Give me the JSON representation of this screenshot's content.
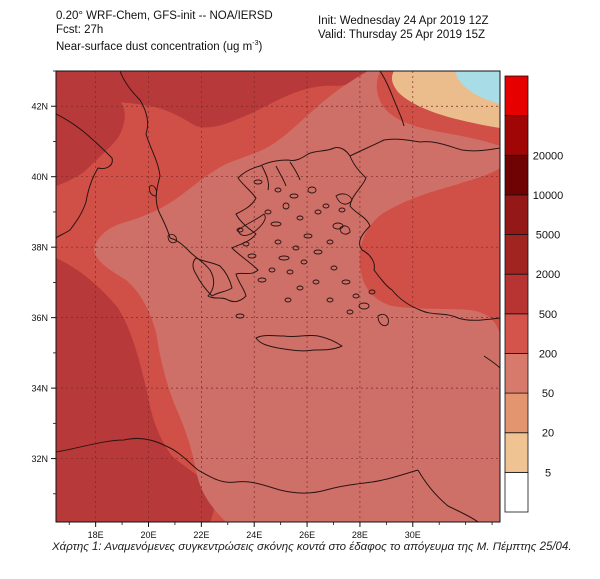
{
  "header": {
    "model_line": "0.20° WRF-Chem, GFS-init -- NOA/IERSD",
    "forecast_line": "Fcst: 27h",
    "variable_label": "Near-surface dust concentration (ug m",
    "variable_unit_exponent": "-3",
    "variable_close": ")",
    "init_line": "Init: Wednesday 24 Apr 2019  12Z",
    "valid_line": "Valid: Thursday 25 Apr 2019  15Z"
  },
  "axes": {
    "lat_labels": [
      "42N",
      "40N",
      "38N",
      "36N",
      "34N",
      "32N"
    ],
    "lon_labels": [
      "18E",
      "20E",
      "22E",
      "24E",
      "26E",
      "28E",
      "30E"
    ],
    "lat_values": [
      42,
      40,
      38,
      36,
      34,
      32
    ],
    "lon_values": [
      18,
      20,
      22,
      24,
      26,
      28,
      30
    ],
    "lon_range": [
      16.5,
      33.3
    ],
    "lat_range": [
      30.2,
      43.0
    ]
  },
  "colorbar": {
    "labels": [
      "20000",
      "10000",
      "5000",
      "2000",
      "500",
      "200",
      "50",
      "20",
      "5"
    ],
    "colors": [
      "#ffffff",
      "#f0c492",
      "#e3956f",
      "#d77a6c",
      "#d4544c",
      "#b83433",
      "#a22421",
      "#941818",
      "#6f0303",
      "#a10606",
      "#e60000"
    ]
  },
  "map_colors": {
    "dark": "#b8393a",
    "mid": "#d04f47",
    "light": "#cf7068",
    "sand": "#ebbd8c",
    "water": "#a8dde8",
    "coast": "#2a1412"
  },
  "caption": "Χάρτης 1: Αναμενόμενες συγκεντρώσεις σκόνης κοντά στο έδαφος το απόγευμα της Μ. Πέμπτης 25/04."
}
